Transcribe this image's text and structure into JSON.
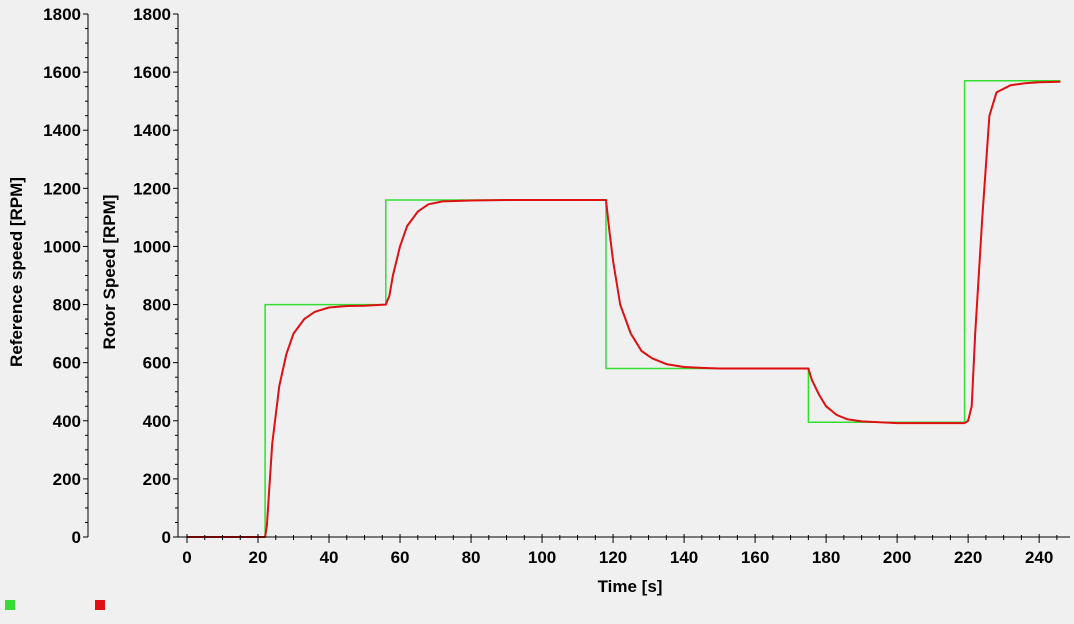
{
  "chart_data": {
    "type": "line",
    "title": "",
    "xlabel": "Time [s]",
    "ylabel_left": "Reference speed [RPM]",
    "ylabel_right": "Rotor Speed [RPM]",
    "xlim": [
      0,
      247
    ],
    "ylim": [
      0,
      1800
    ],
    "x_ticks": [
      0,
      20,
      40,
      60,
      80,
      100,
      120,
      140,
      160,
      180,
      200,
      220,
      240
    ],
    "y_ticks": [
      0,
      200,
      400,
      600,
      800,
      1000,
      1200,
      1400,
      1600,
      1800
    ],
    "grid": false,
    "legend": "bottom-left",
    "series": [
      {
        "color": "#33dd33",
        "step": true,
        "x": [
          0,
          22,
          22,
          56,
          56,
          118,
          118,
          175,
          175,
          219,
          219,
          246
        ],
        "values": [
          0,
          0,
          800,
          800,
          1160,
          1160,
          580,
          580,
          395,
          395,
          1570,
          1570
        ]
      },
      {
        "color": "#dd1111",
        "step": false,
        "x": [
          0,
          22,
          22.5,
          24,
          26,
          28,
          30,
          33,
          36,
          40,
          45,
          50,
          56,
          57,
          58,
          60,
          62,
          65,
          68,
          72,
          80,
          90,
          100,
          110,
          118,
          119,
          120,
          122,
          125,
          128,
          131,
          135,
          140,
          145,
          150,
          160,
          170,
          175,
          176,
          178,
          180,
          183,
          186,
          190,
          195,
          200,
          210,
          219,
          220,
          221,
          222,
          224,
          226,
          228,
          232,
          236,
          240,
          246
        ],
        "values": [
          0,
          0,
          40,
          320,
          520,
          630,
          700,
          750,
          775,
          790,
          795,
          796,
          800,
          830,
          900,
          1000,
          1070,
          1120,
          1145,
          1155,
          1158,
          1160,
          1160,
          1160,
          1160,
          1050,
          950,
          800,
          700,
          640,
          615,
          595,
          585,
          582,
          580,
          580,
          580,
          580,
          540,
          490,
          450,
          420,
          405,
          398,
          395,
          392,
          392,
          392,
          400,
          450,
          700,
          1100,
          1450,
          1530,
          1555,
          1562,
          1565,
          1567
        ]
      }
    ]
  }
}
